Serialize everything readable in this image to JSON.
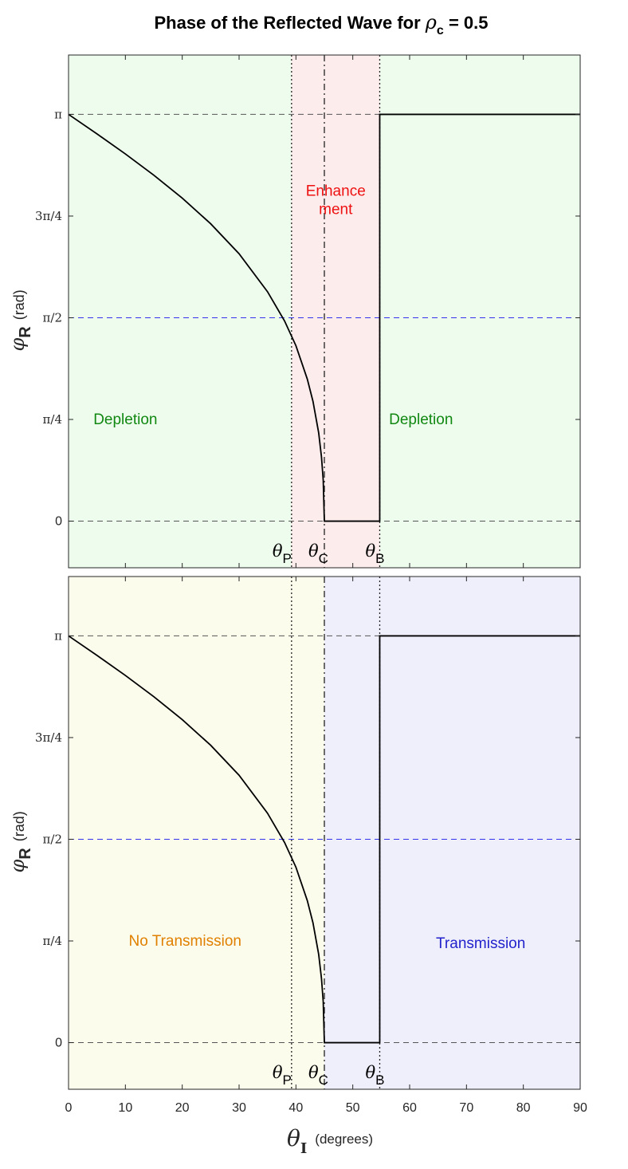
{
  "title": {
    "text": "Phase of the Reflected Wave for",
    "symbol": "ρ",
    "subscript": "c",
    "suffix": "= 0.5"
  },
  "colors": {
    "enhancement": "#ee1111",
    "depletion": "#118811",
    "no_transmission": "#e08000",
    "transmission": "#2222cc",
    "half_pi_line": "#3333ee",
    "panel1_green": "#eefcee",
    "panel1_pink": "#fcecec",
    "panel2_yellow": "#fcfced",
    "panel2_lavender": "#efeffc"
  },
  "chart_data": [
    {
      "type": "line",
      "panel": "top",
      "xlim": [
        0,
        90
      ],
      "ylim": [
        -0.36,
        3.6
      ],
      "xticks": [
        "0",
        "10",
        "20",
        "30",
        "40",
        "50",
        "60",
        "70",
        "80",
        "90"
      ],
      "yticks": [
        {
          "value": 0,
          "label": "0"
        },
        {
          "value": 0.7854,
          "label": "π/4"
        },
        {
          "value": 1.5708,
          "label": "π/2"
        },
        {
          "value": 2.3562,
          "label": "3π/4"
        },
        {
          "value": 3.1416,
          "label": "π"
        }
      ],
      "ylabel": {
        "symbol": "φ",
        "sub": "R",
        "unit": "(rad)"
      },
      "regions": [
        {
          "from": 0,
          "to": 39.23,
          "color": "green"
        },
        {
          "from": 39.23,
          "to": 54.74,
          "color": "pink"
        },
        {
          "from": 54.74,
          "to": 90,
          "color": "green"
        }
      ],
      "region_labels": {
        "left": "Depletion",
        "middle_line1": "Enhance",
        "middle_line2": "ment",
        "right": "Depletion"
      },
      "angle_markers": [
        {
          "symbol": "θ",
          "sub": "P",
          "x": 39.23,
          "style": "dotted"
        },
        {
          "symbol": "θ",
          "sub": "C",
          "x": 45.0,
          "style": "dashdot"
        },
        {
          "symbol": "θ",
          "sub": "B",
          "x": 54.74,
          "style": "dotted"
        }
      ],
      "series": [
        {
          "x": [
            0,
            5,
            10,
            15,
            20,
            25,
            30,
            35,
            38,
            40,
            42,
            43,
            44,
            44.5,
            44.8,
            45,
            45,
            54.74,
            54.74,
            90
          ],
          "y": [
            3.1416,
            2.991,
            2.836,
            2.672,
            2.495,
            2.297,
            2.065,
            1.772,
            1.546,
            1.355,
            1.097,
            0.925,
            0.682,
            0.493,
            0.316,
            0,
            0,
            0,
            3.1416,
            3.1416
          ]
        }
      ]
    },
    {
      "type": "line",
      "panel": "bottom",
      "xlim": [
        0,
        90
      ],
      "ylim": [
        -0.36,
        3.6
      ],
      "xticks": [
        "0",
        "10",
        "20",
        "30",
        "40",
        "50",
        "60",
        "70",
        "80",
        "90"
      ],
      "yticks": [
        {
          "value": 0,
          "label": "0"
        },
        {
          "value": 0.7854,
          "label": "π/4"
        },
        {
          "value": 1.5708,
          "label": "π/2"
        },
        {
          "value": 2.3562,
          "label": "3π/4"
        },
        {
          "value": 3.1416,
          "label": "π"
        }
      ],
      "ylabel": {
        "symbol": "φ",
        "sub": "R",
        "unit": "(rad)"
      },
      "xlabel": {
        "symbol": "θ",
        "sub": "I",
        "unit": "(degrees)"
      },
      "regions": [
        {
          "from": 0,
          "to": 45.0,
          "color": "yellow"
        },
        {
          "from": 45.0,
          "to": 90,
          "color": "lavender"
        }
      ],
      "region_labels": {
        "left": "No Transmission",
        "right": "Transmission"
      },
      "angle_markers": [
        {
          "symbol": "θ",
          "sub": "P",
          "x": 39.23,
          "style": "dotted"
        },
        {
          "symbol": "θ",
          "sub": "C",
          "x": 45.0,
          "style": "dashdot"
        },
        {
          "symbol": "θ",
          "sub": "B",
          "x": 54.74,
          "style": "dotted"
        }
      ],
      "series": [
        {
          "x": [
            0,
            5,
            10,
            15,
            20,
            25,
            30,
            35,
            38,
            40,
            42,
            43,
            44,
            44.5,
            44.8,
            45,
            45,
            54.74,
            54.74,
            90
          ],
          "y": [
            3.1416,
            2.991,
            2.836,
            2.672,
            2.495,
            2.297,
            2.065,
            1.772,
            1.546,
            1.355,
            1.097,
            0.925,
            0.682,
            0.493,
            0.316,
            0,
            0,
            0,
            3.1416,
            3.1416
          ]
        }
      ]
    }
  ]
}
